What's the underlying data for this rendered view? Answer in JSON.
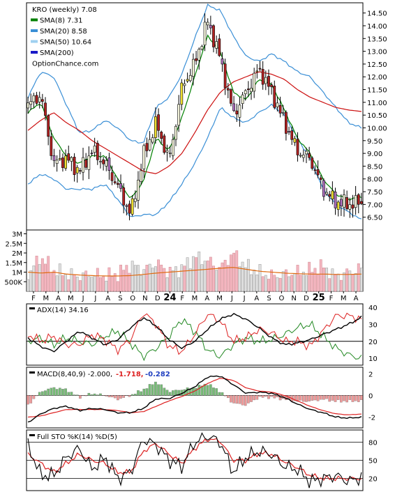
{
  "colors": {
    "up": "#f5f5dc",
    "down": "#b22222",
    "sma8": "#008000",
    "sma20": "#3a8fd6",
    "sma50": "#e8e85a",
    "sma200": "#cc1010",
    "band": "#3a8fd6",
    "vol_up": "#e0e0e0",
    "vol_down": "#f4b6c0",
    "vol_avg": "#e06a10",
    "adx": "#000000",
    "pdi": "#dd2222",
    "mdi": "#228822",
    "macd": "#000000",
    "signal": "#dd2222",
    "hist_up": "#77bb77",
    "hist_down": "#ee9999",
    "stoK": "#000000",
    "stoD": "#dd2222"
  },
  "price_panel": {
    "legend": [
      {
        "label": "KRO (weekly) 7.08",
        "swatch": ""
      },
      {
        "label": "SMA(8) 7.31",
        "swatch": "#008000"
      },
      {
        "label": "SMA(20) 8.58",
        "swatch": "#3a8fd6"
      },
      {
        "label": "SMA(50) 10.64",
        "swatch": "#9fd0f0"
      },
      {
        "label": "SMA(200)",
        "swatch": "#1a1ac8"
      },
      {
        "label": "OptionChance.com",
        "swatch": ""
      }
    ],
    "y_ticks": [
      "14.50",
      "14.00",
      "13.50",
      "13.00",
      "12.50",
      "12.00",
      "11.50",
      "11.00",
      "10.50",
      "10.00",
      "9.50",
      "9.00",
      "8.50",
      "8.00",
      "7.50",
      "7.00",
      "6.50"
    ],
    "ylim": [
      6.0,
      14.9
    ]
  },
  "volume_panel": {
    "y_ticks": [
      "3M",
      "2.5M",
      "2M",
      "1.5M",
      "1M",
      "500K"
    ],
    "ylim": [
      0,
      3.2
    ]
  },
  "x_axis": {
    "labels": [
      "F",
      "M",
      "A",
      "M",
      "J",
      "J",
      "A",
      "S",
      "O",
      "N",
      "D",
      "24",
      "F",
      "M",
      "A",
      "M",
      "J",
      "J",
      "A",
      "S",
      "O",
      "N",
      "D",
      "25",
      "F",
      "M",
      "A"
    ]
  },
  "adx_panel": {
    "title": "ADX(14) 34.16",
    "y_ticks": [
      "40",
      "30",
      "20",
      "10"
    ],
    "ylim": [
      6,
      42
    ]
  },
  "macd_panel": {
    "title": "MACD(8,40,9) -2.000,",
    "signal_value": "-1.718,",
    "hist_value": "-0.282",
    "y_ticks": [
      "2",
      "0",
      "-2"
    ],
    "ylim": [
      -3,
      2.6
    ]
  },
  "sto_panel": {
    "title": "Full STO %K(14) %D(5)",
    "y_ticks": [
      "80",
      "50",
      "20"
    ],
    "ylim": [
      0,
      100
    ]
  },
  "chart_data": {
    "type": "line",
    "x_labels": [
      "F",
      "M",
      "A",
      "M",
      "J",
      "J",
      "A",
      "S",
      "O",
      "N",
      "D",
      "24",
      "F",
      "M",
      "A",
      "M",
      "J",
      "J",
      "A",
      "S",
      "O",
      "N",
      "D",
      "25",
      "F",
      "M",
      "A"
    ],
    "close_anchors": [
      10.9,
      11.3,
      8.6,
      8.8,
      8.3,
      9.1,
      8.6,
      7.7,
      6.6,
      8.9,
      10.2,
      8.7,
      11.6,
      12.5,
      14.2,
      12.7,
      10.5,
      11.4,
      12.3,
      11.4,
      10.2,
      9.1,
      8.8,
      7.6,
      7.1,
      7.0,
      7.08
    ],
    "sma8_anchors": [
      10.6,
      11.0,
      9.6,
      8.9,
      8.6,
      8.9,
      8.9,
      8.0,
      7.2,
      7.9,
      9.6,
      9.1,
      10.4,
      12.0,
      13.6,
      13.0,
      11.4,
      11.1,
      11.9,
      11.7,
      10.7,
      9.6,
      9.0,
      8.0,
      7.4,
      7.2,
      7.31
    ],
    "sma20_anchors": [
      8.0,
      10.0,
      10.3,
      9.1,
      8.5,
      8.7,
      9.0,
      8.7,
      7.9,
      7.5,
      8.6,
      8.9,
      9.4,
      10.6,
      12.4,
      13.3,
      12.5,
      11.6,
      11.7,
      11.9,
      11.5,
      10.8,
      10.4,
      9.8,
      9.0,
      8.6,
      8.58
    ],
    "sma50_anchors": [
      9.9,
      10.3,
      10.6,
      10.2,
      9.9,
      9.5,
      9.2,
      8.9,
      8.6,
      8.3,
      8.2,
      8.5,
      9.0,
      9.8,
      10.7,
      11.4,
      11.8,
      12.0,
      12.2,
      12.1,
      11.9,
      11.5,
      11.2,
      11.0,
      10.8,
      10.7,
      10.64
    ],
    "upper_band_anchors": [
      11.2,
      12.2,
      12.0,
      10.9,
      9.8,
      9.9,
      10.3,
      10.0,
      9.5,
      9.4,
      10.8,
      11.2,
      12.1,
      13.5,
      14.8,
      14.6,
      13.6,
      12.8,
      12.6,
      12.9,
      12.6,
      12.2,
      12.0,
      11.4,
      10.8,
      10.2,
      10.0
    ],
    "lower_band_anchors": [
      7.8,
      8.2,
      8.0,
      7.6,
      7.6,
      7.6,
      7.8,
      7.2,
      6.5,
      6.6,
      6.6,
      7.1,
      7.8,
      8.6,
      9.6,
      10.8,
      10.4,
      10.2,
      10.6,
      10.9,
      10.5,
      9.6,
      8.8,
      7.6,
      7.0,
      6.7,
      6.4
    ],
    "volume_anchors": [
      0.9,
      1.8,
      1.1,
      0.9,
      0.8,
      0.9,
      0.8,
      0.9,
      1.4,
      1.1,
      1.5,
      1.0,
      1.2,
      1.8,
      1.6,
      1.2,
      2.0,
      1.3,
      1.0,
      0.8,
      0.9,
      1.0,
      1.1,
      1.3,
      0.8,
      1.0,
      1.2
    ],
    "volume_avg_anchors": [
      1.0,
      0.95,
      1.0,
      0.9,
      0.85,
      0.82,
      0.8,
      0.8,
      0.82,
      0.88,
      0.95,
      1.0,
      1.05,
      1.1,
      1.15,
      1.2,
      1.25,
      1.15,
      1.05,
      1.0,
      0.95,
      0.92,
      0.9,
      0.9,
      0.88,
      0.88,
      0.9
    ],
    "adx_anchors": [
      22,
      17,
      14,
      20,
      26,
      22,
      18,
      21,
      28,
      34,
      29,
      21,
      16,
      20,
      27,
      33,
      36,
      33,
      28,
      22,
      18,
      19,
      21,
      24,
      27,
      30,
      34.16
    ],
    "pdi_anchors": [
      24,
      20,
      23,
      18,
      18,
      24,
      21,
      15,
      21,
      37,
      30,
      17,
      14,
      24,
      36,
      32,
      20,
      22,
      27,
      25,
      20,
      20,
      17,
      26,
      35,
      35,
      33
    ],
    "mdi_anchors": [
      20,
      22,
      18,
      22,
      20,
      18,
      23,
      26,
      19,
      11,
      16,
      23,
      33,
      26,
      15,
      11,
      18,
      22,
      20,
      21,
      24,
      28,
      30,
      23,
      16,
      12,
      10
    ],
    "macd_anchors": [
      -2.5,
      -1.7,
      -1.2,
      -1.0,
      -1.4,
      -1.2,
      -1.3,
      -1.6,
      -1.6,
      -1.2,
      -0.3,
      -0.3,
      0.2,
      0.8,
      1.7,
      1.8,
      1.0,
      0.2,
      0.3,
      0.2,
      -0.2,
      -0.8,
      -1.3,
      -1.6,
      -2.0,
      -2.1,
      -2.0
    ],
    "signal_anchors": [
      -2.0,
      -1.9,
      -1.6,
      -1.3,
      -1.3,
      -1.3,
      -1.3,
      -1.4,
      -1.6,
      -1.5,
      -1.0,
      -0.5,
      -0.1,
      0.4,
      1.1,
      1.6,
      1.4,
      0.7,
      0.4,
      0.3,
      0.0,
      -0.5,
      -1.0,
      -1.4,
      -1.7,
      -1.8,
      -1.718
    ],
    "stoK_anchors": [
      75,
      25,
      25,
      55,
      70,
      35,
      55,
      20,
      30,
      85,
      75,
      50,
      40,
      80,
      90,
      80,
      30,
      55,
      65,
      60,
      40,
      35,
      15,
      20,
      25,
      15,
      22
    ],
    "stoD_anchors": [
      60,
      45,
      30,
      45,
      60,
      50,
      45,
      30,
      30,
      65,
      78,
      60,
      45,
      70,
      85,
      82,
      50,
      50,
      62,
      60,
      48,
      38,
      25,
      20,
      20,
      20,
      20
    ]
  }
}
